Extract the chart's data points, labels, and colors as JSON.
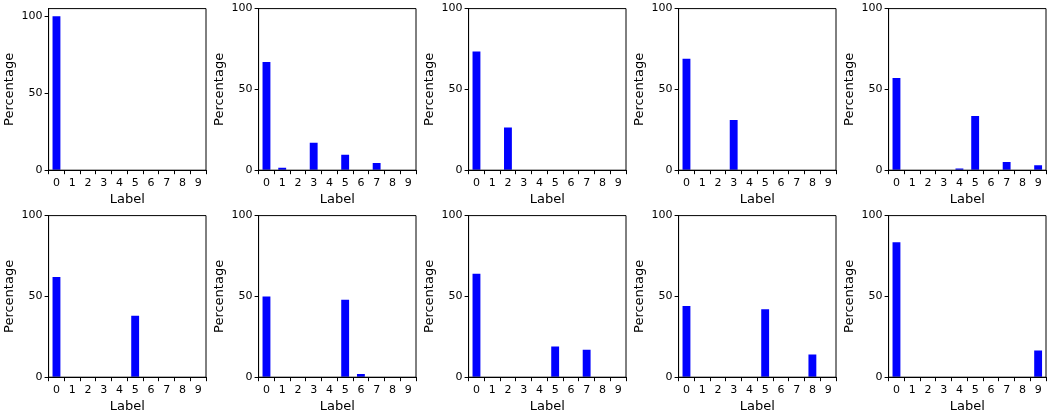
{
  "chart_data": [
    {
      "type": "bar",
      "xlabel": "Label",
      "ylabel": "Percentage",
      "categories": [
        "0",
        "1",
        "2",
        "3",
        "4",
        "5",
        "6",
        "7",
        "8",
        "9"
      ],
      "values": [
        100,
        0,
        0,
        0,
        0,
        0,
        0,
        0,
        0,
        0
      ],
      "color": "#0000ff",
      "ylim": [
        0,
        105
      ],
      "yticks": [
        0,
        50,
        100
      ]
    },
    {
      "type": "bar",
      "xlabel": "Label",
      "ylabel": "Percentage",
      "categories": [
        "0",
        "1",
        "2",
        "3",
        "4",
        "5",
        "6",
        "7",
        "8",
        "9"
      ],
      "values": [
        67,
        1.5,
        0,
        17,
        0,
        9.5,
        0,
        4.5,
        0,
        0
      ],
      "color": "#0000ff",
      "ylim": [
        0,
        100
      ],
      "yticks": [
        0,
        50,
        100
      ]
    },
    {
      "type": "bar",
      "xlabel": "Label",
      "ylabel": "Percentage",
      "categories": [
        "0",
        "1",
        "2",
        "3",
        "4",
        "5",
        "6",
        "7",
        "8",
        "9"
      ],
      "values": [
        73.5,
        0,
        26.5,
        0,
        0,
        0,
        0,
        0,
        0,
        0
      ],
      "color": "#0000ff",
      "ylim": [
        0,
        100
      ],
      "yticks": [
        0,
        50,
        100
      ]
    },
    {
      "type": "bar",
      "xlabel": "Label",
      "ylabel": "Percentage",
      "categories": [
        "0",
        "1",
        "2",
        "3",
        "4",
        "5",
        "6",
        "7",
        "8",
        "9"
      ],
      "values": [
        69,
        0,
        0,
        31,
        0,
        0,
        0,
        0,
        0,
        0
      ],
      "color": "#0000ff",
      "ylim": [
        0,
        100
      ],
      "yticks": [
        0,
        50,
        100
      ]
    },
    {
      "type": "bar",
      "xlabel": "Label",
      "ylabel": "Percentage",
      "categories": [
        "0",
        "1",
        "2",
        "3",
        "4",
        "5",
        "6",
        "7",
        "8",
        "9"
      ],
      "values": [
        57,
        0,
        0,
        0,
        1,
        33.5,
        0,
        5,
        0,
        3
      ],
      "color": "#0000ff",
      "ylim": [
        0,
        100
      ],
      "yticks": [
        0,
        50,
        100
      ]
    },
    {
      "type": "bar",
      "xlabel": "Label",
      "ylabel": "Percentage",
      "categories": [
        "0",
        "1",
        "2",
        "3",
        "4",
        "5",
        "6",
        "7",
        "8",
        "9"
      ],
      "values": [
        62,
        0,
        0,
        0,
        0,
        38,
        0,
        0,
        0,
        0
      ],
      "color": "#0000ff",
      "ylim": [
        0,
        100
      ],
      "yticks": [
        0,
        50,
        100
      ]
    },
    {
      "type": "bar",
      "xlabel": "Label",
      "ylabel": "Percentage",
      "categories": [
        "0",
        "1",
        "2",
        "3",
        "4",
        "5",
        "6",
        "7",
        "8",
        "9"
      ],
      "values": [
        50,
        0,
        0,
        0,
        0,
        48,
        2,
        0,
        0,
        0
      ],
      "color": "#0000ff",
      "ylim": [
        0,
        100
      ],
      "yticks": [
        0,
        50,
        100
      ]
    },
    {
      "type": "bar",
      "xlabel": "Label",
      "ylabel": "Percentage",
      "categories": [
        "0",
        "1",
        "2",
        "3",
        "4",
        "5",
        "6",
        "7",
        "8",
        "9"
      ],
      "values": [
        64,
        0,
        0,
        0,
        0,
        19,
        0,
        17,
        0,
        0
      ],
      "color": "#0000ff",
      "ylim": [
        0,
        100
      ],
      "yticks": [
        0,
        50,
        100
      ]
    },
    {
      "type": "bar",
      "xlabel": "Label",
      "ylabel": "Percentage",
      "categories": [
        "0",
        "1",
        "2",
        "3",
        "4",
        "5",
        "6",
        "7",
        "8",
        "9"
      ],
      "values": [
        44,
        0,
        0,
        0,
        0,
        42,
        0,
        0,
        14,
        0
      ],
      "color": "#0000ff",
      "ylim": [
        0,
        100
      ],
      "yticks": [
        0,
        50,
        100
      ]
    },
    {
      "type": "bar",
      "xlabel": "Label",
      "ylabel": "Percentage",
      "categories": [
        "0",
        "1",
        "2",
        "3",
        "4",
        "5",
        "6",
        "7",
        "8",
        "9"
      ],
      "values": [
        83.5,
        0,
        0,
        0,
        0,
        0,
        0,
        0,
        0,
        16.5
      ],
      "color": "#0000ff",
      "ylim": [
        0,
        100
      ],
      "yticks": [
        0,
        50,
        100
      ]
    }
  ]
}
